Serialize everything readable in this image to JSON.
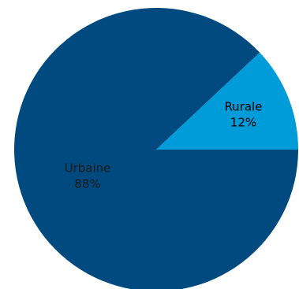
{
  "chart_data": {
    "type": "pie",
    "slices": [
      {
        "label": "Urbaine",
        "value": 88,
        "display": "88%",
        "color": "#004a80",
        "label_color": "#1a1a1a"
      },
      {
        "label": "Rurale",
        "value": 12,
        "display": "12%",
        "color": "#009bd9",
        "label_color": "#000000"
      }
    ],
    "start_angle_deg": 0,
    "direction": "clockwise",
    "legend": "none"
  }
}
